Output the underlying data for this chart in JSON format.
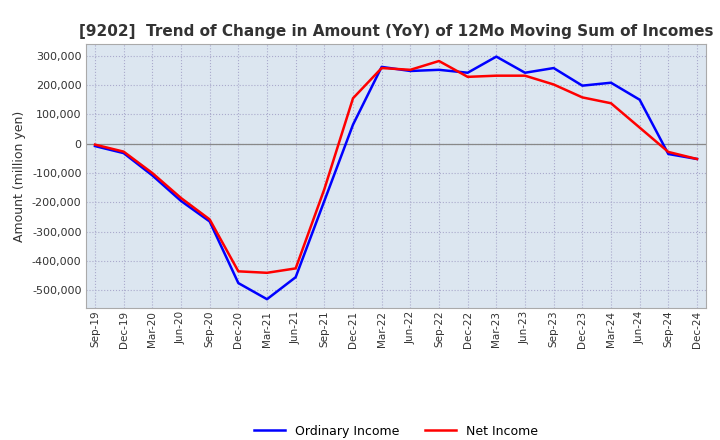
{
  "title": "[9202]  Trend of Change in Amount (YoY) of 12Mo Moving Sum of Incomes",
  "ylabel": "Amount (million yen)",
  "x_labels": [
    "Sep-19",
    "Dec-19",
    "Mar-20",
    "Jun-20",
    "Sep-20",
    "Dec-20",
    "Mar-21",
    "Jun-21",
    "Sep-21",
    "Dec-21",
    "Mar-22",
    "Jun-22",
    "Sep-22",
    "Dec-22",
    "Mar-23",
    "Jun-23",
    "Sep-23",
    "Dec-23",
    "Mar-24",
    "Jun-24",
    "Sep-24",
    "Dec-24"
  ],
  "ordinary_income": [
    -8000,
    -32000,
    -108000,
    -195000,
    -265000,
    -475000,
    -530000,
    -455000,
    -195000,
    65000,
    262000,
    248000,
    252000,
    242000,
    297000,
    242000,
    258000,
    198000,
    208000,
    150000,
    -35000,
    -52000
  ],
  "net_income": [
    -3000,
    -27000,
    -100000,
    -185000,
    -258000,
    -435000,
    -440000,
    -425000,
    -155000,
    155000,
    258000,
    252000,
    282000,
    228000,
    232000,
    232000,
    202000,
    158000,
    138000,
    55000,
    -28000,
    -52000
  ],
  "ordinary_color": "#0000ff",
  "net_color": "#ff0000",
  "ylim": [
    -560000,
    340000
  ],
  "yticks": [
    -500000,
    -400000,
    -300000,
    -200000,
    -100000,
    0,
    100000,
    200000,
    300000
  ],
  "bg_color": "#ffffff",
  "plot_bg_color": "#dce6f0",
  "grid_color": "#aaaacc",
  "zero_line_color": "#888888",
  "line_width": 1.8,
  "title_fontsize": 11,
  "legend_fontsize": 9,
  "xlabel_fontsize": 7.5,
  "ylabel_fontsize": 9
}
